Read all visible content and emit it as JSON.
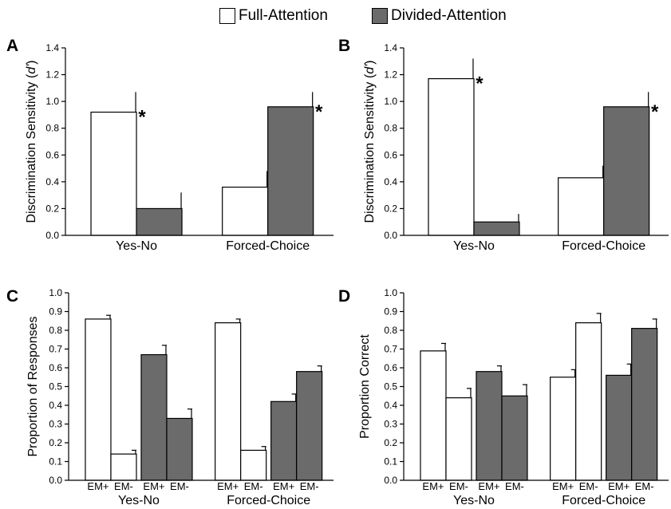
{
  "legend": {
    "full_label": "Full-Attention",
    "divided_label": "Divided-Attention"
  },
  "colors": {
    "full": "#ffffff",
    "divided": "#6b6b6b"
  },
  "chart_data": [
    {
      "panel": "A",
      "type": "bar",
      "ylabel": "Discrimination Sensitivity (d')",
      "ylim": [
        0,
        1.4
      ],
      "yticks": [
        "0.0",
        "0.2",
        "0.4",
        "0.6",
        "0.8",
        "1.0",
        "1.2",
        "1.4"
      ],
      "categories": [
        "Yes-No",
        "Forced-Choice"
      ],
      "series": [
        {
          "name": "Full-Attention",
          "values": [
            0.92,
            0.36
          ],
          "errors": [
            0.15,
            0.12
          ],
          "significant": [
            true,
            true
          ]
        },
        {
          "name": "Divided-Attention",
          "values": [
            0.2,
            0.96
          ],
          "errors": [
            0.12,
            0.11
          ],
          "significant": [
            false,
            true
          ]
        }
      ]
    },
    {
      "panel": "B",
      "type": "bar",
      "ylabel": "Discrimination Sensitivity (d')",
      "ylim": [
        0,
        1.4
      ],
      "yticks": [
        "0.0",
        "0.2",
        "0.4",
        "0.6",
        "0.8",
        "1.0",
        "1.2",
        "1.4"
      ],
      "categories": [
        "Yes-No",
        "Forced-Choice"
      ],
      "series": [
        {
          "name": "Full-Attention",
          "values": [
            1.17,
            0.43
          ],
          "errors": [
            0.15,
            0.09
          ],
          "significant": [
            true,
            true
          ]
        },
        {
          "name": "Divided-Attention",
          "values": [
            0.1,
            0.96
          ],
          "errors": [
            0.06,
            0.11
          ],
          "significant": [
            false,
            true
          ]
        }
      ]
    },
    {
      "panel": "C",
      "type": "bar",
      "ylabel": "Proportion of Responses",
      "ylim": [
        0,
        1.0
      ],
      "yticks": [
        "0.0",
        "0.1",
        "0.2",
        "0.3",
        "0.4",
        "0.5",
        "0.6",
        "0.7",
        "0.8",
        "0.9",
        "1.0"
      ],
      "categories": [
        "Yes-No",
        "Forced-Choice"
      ],
      "subcategories": [
        "EM+",
        "EM-",
        "EM+",
        "EM-"
      ],
      "bars": [
        {
          "group": 0,
          "series": "Full-Attention",
          "sub": "EM+",
          "value": 0.86,
          "error": 0.02
        },
        {
          "group": 0,
          "series": "Full-Attention",
          "sub": "EM-",
          "value": 0.14,
          "error": 0.02
        },
        {
          "group": 0,
          "series": "Divided-Attention",
          "sub": "EM+",
          "value": 0.67,
          "error": 0.05
        },
        {
          "group": 0,
          "series": "Divided-Attention",
          "sub": "EM-",
          "value": 0.33,
          "error": 0.05
        },
        {
          "group": 1,
          "series": "Full-Attention",
          "sub": "EM+",
          "value": 0.84,
          "error": 0.02
        },
        {
          "group": 1,
          "series": "Full-Attention",
          "sub": "EM-",
          "value": 0.16,
          "error": 0.02
        },
        {
          "group": 1,
          "series": "Divided-Attention",
          "sub": "EM+",
          "value": 0.42,
          "error": 0.04
        },
        {
          "group": 1,
          "series": "Divided-Attention",
          "sub": "EM-",
          "value": 0.58,
          "error": 0.03
        }
      ]
    },
    {
      "panel": "D",
      "type": "bar",
      "ylabel": "Proportion Correct",
      "ylim": [
        0,
        1.0
      ],
      "yticks": [
        "0.0",
        "0.1",
        "0.2",
        "0.3",
        "0.4",
        "0.5",
        "0.6",
        "0.7",
        "0.8",
        "0.9",
        "1.0"
      ],
      "categories": [
        "Yes-No",
        "Forced-Choice"
      ],
      "subcategories": [
        "EM+",
        "EM-",
        "EM+",
        "EM-"
      ],
      "bars": [
        {
          "group": 0,
          "series": "Full-Attention",
          "sub": "EM+",
          "value": 0.69,
          "error": 0.04
        },
        {
          "group": 0,
          "series": "Full-Attention",
          "sub": "EM-",
          "value": 0.44,
          "error": 0.05
        },
        {
          "group": 0,
          "series": "Divided-Attention",
          "sub": "EM+",
          "value": 0.58,
          "error": 0.03
        },
        {
          "group": 0,
          "series": "Divided-Attention",
          "sub": "EM-",
          "value": 0.45,
          "error": 0.06
        },
        {
          "group": 1,
          "series": "Full-Attention",
          "sub": "EM+",
          "value": 0.55,
          "error": 0.04
        },
        {
          "group": 1,
          "series": "Full-Attention",
          "sub": "EM-",
          "value": 0.84,
          "error": 0.05
        },
        {
          "group": 1,
          "series": "Divided-Attention",
          "sub": "EM+",
          "value": 0.56,
          "error": 0.06
        },
        {
          "group": 1,
          "series": "Divided-Attention",
          "sub": "EM-",
          "value": 0.81,
          "error": 0.05
        }
      ]
    }
  ]
}
